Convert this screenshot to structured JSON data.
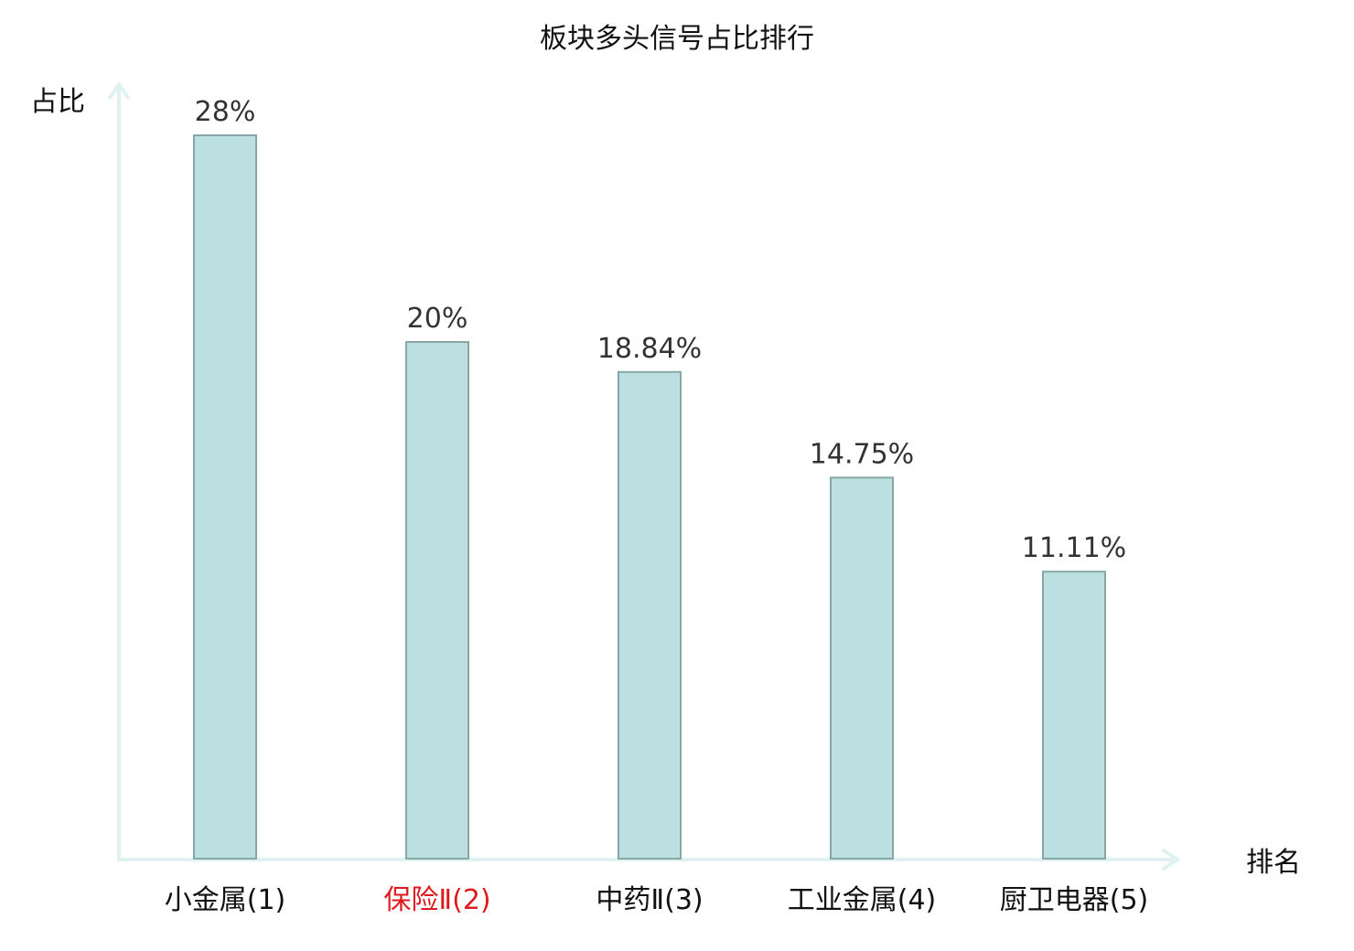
{
  "chart_data": {
    "type": "bar",
    "title": "板块多头信号占比排行",
    "xlabel": "排名",
    "ylabel": "占比",
    "categories": [
      "小金属(1)",
      "保险Ⅱ(2)",
      "中药Ⅱ(3)",
      "工业金属(4)",
      "厨卫电器(5)"
    ],
    "values": [
      28,
      20,
      18.84,
      14.75,
      11.11
    ],
    "value_labels": [
      "28%",
      "20%",
      "18.84%",
      "14.75%",
      "11.11%"
    ],
    "highlight_index": 1,
    "ylim": [
      0,
      28
    ],
    "grid": false,
    "legend": "none",
    "colors": {
      "bar_fill": "#bce0e1",
      "bar_stroke": "#86a8a8",
      "axis": "#e0f2ef",
      "highlight_label": "#e0191c",
      "label": "#111111",
      "value_label": "#333333"
    }
  }
}
